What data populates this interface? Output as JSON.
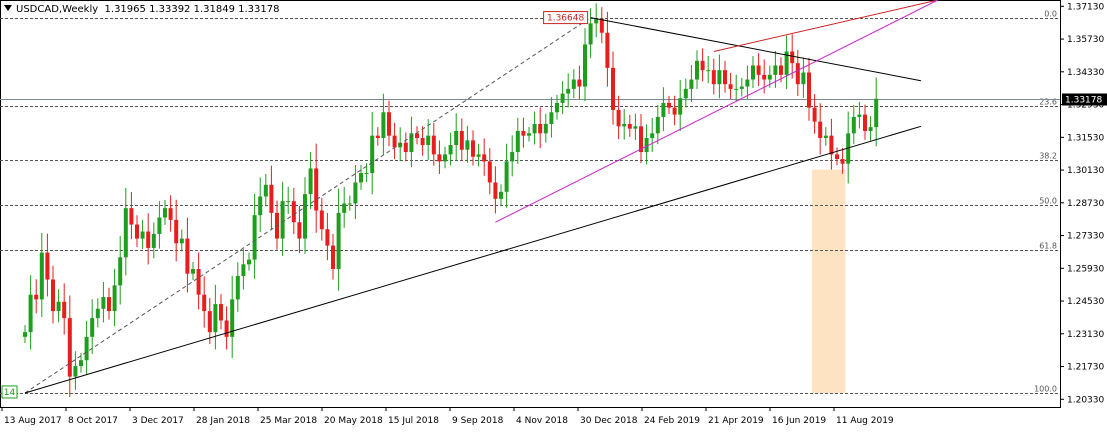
{
  "header": {
    "symbol_label": "USDCAD,Weekly",
    "ohlc_label": "1.31965 1.33392 1.31849 1.33178"
  },
  "colors": {
    "bull": "#1e9d1e",
    "bear": "#e81e1e",
    "fib_line": "#555555",
    "channel_upper": "#cc2222",
    "channel_lower": "#cc22cc",
    "trendline": "#000000",
    "highlight": "#fde3c2",
    "price_label_bg": "#000000",
    "top_label_border": "#cc2222",
    "start_label_border": "#1e9d1e"
  },
  "chart_data": {
    "type": "candlestick",
    "title": "USDCAD,Weekly",
    "timeframe": "Weekly",
    "ohlc_header": {
      "open": 1.31965,
      "high": 1.33392,
      "low": 1.31849,
      "close": 1.33178
    },
    "y_range": [
      1.2,
      1.374
    ],
    "y_ticks": [
      1.3713,
      1.3573,
      1.3433,
      1.3293,
      1.3153,
      1.3013,
      1.2873,
      1.2733,
      1.2593,
      1.2453,
      1.2313,
      1.2173,
      1.2033
    ],
    "y_tick_labels": [
      "1.37130",
      "1.35730",
      "1.34330",
      "1.32930",
      "1.31530",
      "1.30130",
      "1.28730",
      "1.27330",
      "1.25930",
      "1.24530",
      "1.23130",
      "1.21730",
      "1.20330"
    ],
    "x_labels": [
      "13 Aug 2017",
      "8 Oct 2017",
      "3 Dec 2017",
      "28 Jan 2018",
      "25 Mar 2018",
      "20 May 2018",
      "15 Jul 2018",
      "9 Sep 2018",
      "4 Nov 2018",
      "30 Dec 2018",
      "24 Feb 2019",
      "21 Apr 2019",
      "16 Jun 2019",
      "11 Aug 2019"
    ],
    "current_price": "1.33178",
    "current_price_value": 1.33178,
    "swing_high_label": "1.36648",
    "swing_high_value": 1.36648,
    "swing_low_label": "14",
    "fibonacci": {
      "high": 1.36648,
      "low": 1.206,
      "levels": [
        {
          "label": "0.0",
          "value": 1.36648
        },
        {
          "label": "23.6",
          "value": 1.3286
        },
        {
          "label": "38.2",
          "value": 1.3054
        },
        {
          "label": "50.0",
          "value": 1.2862
        },
        {
          "label": "61.8",
          "value": 1.2673
        },
        {
          "label": "100.0",
          "value": 1.206
        }
      ]
    },
    "closes": [
      1.232,
      1.248,
      1.246,
      1.266,
      1.2545,
      1.241,
      1.245,
      1.238,
      1.213,
      1.2175,
      1.22,
      1.23,
      1.238,
      1.242,
      1.247,
      1.241,
      1.252,
      1.264,
      1.285,
      1.278,
      1.272,
      1.275,
      1.268,
      1.274,
      1.281,
      1.285,
      1.28,
      1.27,
      1.272,
      1.257,
      1.259,
      1.248,
      1.241,
      1.232,
      1.244,
      1.237,
      1.23,
      1.246,
      1.256,
      1.261,
      1.263,
      1.282,
      1.29,
      1.295,
      1.283,
      1.272,
      1.288,
      1.288,
      1.279,
      1.272,
      1.291,
      1.302,
      1.284,
      1.276,
      1.269,
      1.259,
      1.283,
      1.287,
      1.287,
      1.296,
      1.3,
      1.3,
      1.316,
      1.315,
      1.326,
      1.316,
      1.311,
      1.313,
      1.309,
      1.317,
      1.315,
      1.312,
      1.316,
      1.308,
      1.305,
      1.308,
      1.312,
      1.318,
      1.31,
      1.314,
      1.307,
      1.308,
      1.305,
      1.296,
      1.289,
      1.292,
      1.305,
      1.309,
      1.318,
      1.316,
      1.317,
      1.321,
      1.317,
      1.321,
      1.326,
      1.33,
      1.334,
      1.336,
      1.34,
      1.337,
      1.355,
      1.364,
      1.366,
      1.36,
      1.345,
      1.327,
      1.32,
      1.321,
      1.319,
      1.32,
      1.309,
      1.315,
      1.317,
      1.324,
      1.33,
      1.328,
      1.325,
      1.332,
      1.336,
      1.34,
      1.348,
      1.344,
      1.344,
      1.338,
      1.344,
      1.338,
      1.336,
      1.336,
      1.337,
      1.34,
      1.346,
      1.342,
      1.34,
      1.342,
      1.346,
      1.342,
      1.352,
      1.347,
      1.338,
      1.343,
      1.328,
      1.322,
      1.315,
      1.316,
      1.308,
      1.306,
      1.304,
      1.317,
      1.324,
      1.325,
      1.318,
      1.31965,
      1.33178
    ],
    "trendlines": [
      {
        "name": "dashed impulse",
        "from_week": 0,
        "from_value": 1.206,
        "to_week": 101,
        "to_value": 1.36648,
        "style": "dashed",
        "color": "#555555"
      },
      {
        "name": "long support",
        "from_week": 0,
        "from_value": 1.206,
        "to_week": 160,
        "to_value": 1.32,
        "style": "solid",
        "color": "#000000"
      },
      {
        "name": "descending resistance",
        "from_week": 101,
        "from_value": 1.36648,
        "to_week": 160,
        "to_value": 1.3395,
        "style": "solid",
        "color": "#000000"
      },
      {
        "name": "channel upper",
        "from_week": 123,
        "from_value": 1.352,
        "to_week": 163,
        "to_value": 1.374,
        "style": "solid",
        "color": "#cc2222"
      },
      {
        "name": "channel lower",
        "from_week": 84,
        "from_value": 1.279,
        "to_week": 163,
        "to_value": 1.374,
        "style": "solid",
        "color": "#cc22cc"
      }
    ],
    "highlight_zone": {
      "from_week": 140.5,
      "to_week": 146.5,
      "top": 1.3015,
      "bottom": 1.206
    },
    "grid": false,
    "legend": "none"
  }
}
